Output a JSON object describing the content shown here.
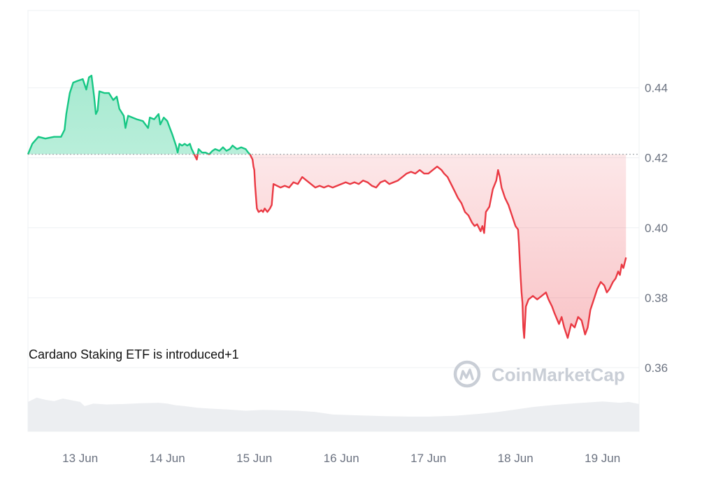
{
  "chart_data": {
    "type": "area",
    "title": "",
    "xlabel": "",
    "ylabel": "",
    "x_tick_labels": [
      "13 Jun",
      "14 Jun",
      "15 Jun",
      "16 Jun",
      "17 Jun",
      "18 Jun",
      "19 Jun"
    ],
    "y_ticks": [
      0.44,
      0.42,
      0.4,
      0.38,
      0.36
    ],
    "y_tick_labels": [
      "0.44",
      "0.42",
      "0.40",
      "0.38",
      "0.36"
    ],
    "ylim": [
      0.3418,
      0.4621
    ],
    "xlim": [
      12.4,
      19.42
    ],
    "baseline": 0.421,
    "grid": true,
    "colors": {
      "up_line": "#16c784",
      "up_fill": "#16c784",
      "down_line": "#ea3943",
      "down_fill": "#ea3943",
      "volume": "#eceef1",
      "grid": "#eef0f3",
      "baseline": "#9aa0a6"
    },
    "annotation": "Cardano Staking ETF is introduced+1",
    "watermark": "CoinMarketCap",
    "series": [
      {
        "values": [
          [
            12.4,
            0.421
          ],
          [
            12.45,
            0.424
          ],
          [
            12.52,
            0.426
          ],
          [
            12.6,
            0.4255
          ],
          [
            12.7,
            0.426
          ],
          [
            12.78,
            0.426
          ],
          [
            12.82,
            0.428
          ],
          [
            12.84,
            0.4325
          ],
          [
            12.88,
            0.4385
          ],
          [
            12.92,
            0.4415
          ],
          [
            12.97,
            0.442
          ],
          [
            13.03,
            0.4425
          ],
          [
            13.07,
            0.4395
          ],
          [
            13.1,
            0.443
          ],
          [
            13.13,
            0.4435
          ],
          [
            13.16,
            0.4375
          ],
          [
            13.18,
            0.4325
          ],
          [
            13.2,
            0.4335
          ],
          [
            13.22,
            0.439
          ],
          [
            13.28,
            0.4385
          ],
          [
            13.33,
            0.4385
          ],
          [
            13.38,
            0.4365
          ],
          [
            13.42,
            0.4375
          ],
          [
            13.45,
            0.434
          ],
          [
            13.5,
            0.432
          ],
          [
            13.52,
            0.4285
          ],
          [
            13.55,
            0.432
          ],
          [
            13.6,
            0.4315
          ],
          [
            13.65,
            0.431
          ],
          [
            13.72,
            0.4305
          ],
          [
            13.78,
            0.4285
          ],
          [
            13.8,
            0.4315
          ],
          [
            13.85,
            0.431
          ],
          [
            13.9,
            0.4325
          ],
          [
            13.92,
            0.4295
          ],
          [
            13.96,
            0.4315
          ],
          [
            14.0,
            0.4305
          ],
          [
            14.03,
            0.4285
          ],
          [
            14.06,
            0.4265
          ],
          [
            14.08,
            0.425
          ],
          [
            14.1,
            0.4235
          ],
          [
            14.12,
            0.4215
          ],
          [
            14.14,
            0.424
          ],
          [
            14.17,
            0.4235
          ],
          [
            14.2,
            0.424
          ],
          [
            14.23,
            0.4235
          ],
          [
            14.26,
            0.424
          ],
          [
            14.28,
            0.4225
          ],
          [
            14.3,
            0.4215
          ],
          [
            14.32,
            0.4205
          ],
          [
            14.34,
            0.4195
          ],
          [
            14.36,
            0.4225
          ],
          [
            14.4,
            0.4215
          ],
          [
            14.44,
            0.4215
          ],
          [
            14.48,
            0.421
          ],
          [
            14.52,
            0.422
          ],
          [
            14.55,
            0.4225
          ],
          [
            14.6,
            0.422
          ],
          [
            14.64,
            0.423
          ],
          [
            14.68,
            0.422
          ],
          [
            14.72,
            0.4225
          ],
          [
            14.75,
            0.4235
          ],
          [
            14.8,
            0.4225
          ],
          [
            14.85,
            0.423
          ],
          [
            14.9,
            0.4225
          ],
          [
            14.93,
            0.4215
          ],
          [
            14.95,
            0.421
          ],
          [
            14.98,
            0.4195
          ],
          [
            14.99,
            0.4175
          ],
          [
            15.0,
            0.4165
          ],
          [
            15.01,
            0.412
          ],
          [
            15.02,
            0.4085
          ],
          [
            15.03,
            0.4055
          ],
          [
            15.05,
            0.4045
          ],
          [
            15.08,
            0.405
          ],
          [
            15.1,
            0.4045
          ],
          [
            15.12,
            0.4055
          ],
          [
            15.15,
            0.4045
          ],
          [
            15.18,
            0.4055
          ],
          [
            15.2,
            0.4065
          ],
          [
            15.22,
            0.4125
          ],
          [
            15.26,
            0.412
          ],
          [
            15.3,
            0.4115
          ],
          [
            15.35,
            0.412
          ],
          [
            15.4,
            0.4115
          ],
          [
            15.45,
            0.413
          ],
          [
            15.5,
            0.4125
          ],
          [
            15.55,
            0.4145
          ],
          [
            15.6,
            0.4135
          ],
          [
            15.65,
            0.4125
          ],
          [
            15.7,
            0.4115
          ],
          [
            15.75,
            0.412
          ],
          [
            15.8,
            0.4115
          ],
          [
            15.85,
            0.412
          ],
          [
            15.9,
            0.4115
          ],
          [
            15.95,
            0.412
          ],
          [
            16.0,
            0.4125
          ],
          [
            16.05,
            0.413
          ],
          [
            16.1,
            0.4125
          ],
          [
            16.15,
            0.413
          ],
          [
            16.2,
            0.4125
          ],
          [
            16.25,
            0.4135
          ],
          [
            16.3,
            0.413
          ],
          [
            16.35,
            0.412
          ],
          [
            16.4,
            0.4115
          ],
          [
            16.45,
            0.413
          ],
          [
            16.5,
            0.4135
          ],
          [
            16.55,
            0.4125
          ],
          [
            16.6,
            0.413
          ],
          [
            16.65,
            0.4135
          ],
          [
            16.7,
            0.4145
          ],
          [
            16.75,
            0.4155
          ],
          [
            16.8,
            0.416
          ],
          [
            16.85,
            0.4155
          ],
          [
            16.9,
            0.4165
          ],
          [
            16.95,
            0.4155
          ],
          [
            17.0,
            0.4155
          ],
          [
            17.05,
            0.4165
          ],
          [
            17.1,
            0.4175
          ],
          [
            17.15,
            0.4165
          ],
          [
            17.18,
            0.4155
          ],
          [
            17.22,
            0.4145
          ],
          [
            17.26,
            0.4125
          ],
          [
            17.3,
            0.4105
          ],
          [
            17.34,
            0.4085
          ],
          [
            17.38,
            0.407
          ],
          [
            17.42,
            0.4045
          ],
          [
            17.46,
            0.4035
          ],
          [
            17.5,
            0.4015
          ],
          [
            17.53,
            0.4005
          ],
          [
            17.56,
            0.401
          ],
          [
            17.6,
            0.399
          ],
          [
            17.62,
            0.4005
          ],
          [
            17.64,
            0.3985
          ],
          [
            17.66,
            0.4045
          ],
          [
            17.7,
            0.406
          ],
          [
            17.74,
            0.411
          ],
          [
            17.78,
            0.4135
          ],
          [
            17.8,
            0.4165
          ],
          [
            17.82,
            0.4145
          ],
          [
            17.84,
            0.4115
          ],
          [
            17.88,
            0.4085
          ],
          [
            17.92,
            0.4065
          ],
          [
            17.96,
            0.4035
          ],
          [
            18.0,
            0.4005
          ],
          [
            18.03,
            0.3995
          ],
          [
            18.04,
            0.3955
          ],
          [
            18.05,
            0.3905
          ],
          [
            18.06,
            0.3855
          ],
          [
            18.07,
            0.3815
          ],
          [
            18.08,
            0.3785
          ],
          [
            18.09,
            0.3715
          ],
          [
            18.1,
            0.3685
          ],
          [
            18.12,
            0.3775
          ],
          [
            18.15,
            0.3795
          ],
          [
            18.2,
            0.3805
          ],
          [
            18.25,
            0.3795
          ],
          [
            18.3,
            0.3805
          ],
          [
            18.35,
            0.3815
          ],
          [
            18.38,
            0.3795
          ],
          [
            18.42,
            0.3775
          ],
          [
            18.45,
            0.3755
          ],
          [
            18.5,
            0.3725
          ],
          [
            18.53,
            0.3745
          ],
          [
            18.56,
            0.3715
          ],
          [
            18.6,
            0.3685
          ],
          [
            18.64,
            0.3725
          ],
          [
            18.68,
            0.3715
          ],
          [
            18.72,
            0.3745
          ],
          [
            18.76,
            0.3735
          ],
          [
            18.8,
            0.3695
          ],
          [
            18.83,
            0.3715
          ],
          [
            18.86,
            0.3765
          ],
          [
            18.9,
            0.3795
          ],
          [
            18.94,
            0.3825
          ],
          [
            18.98,
            0.3845
          ],
          [
            19.02,
            0.3835
          ],
          [
            19.05,
            0.3815
          ],
          [
            19.08,
            0.3825
          ],
          [
            19.12,
            0.3845
          ],
          [
            19.15,
            0.3855
          ],
          [
            19.18,
            0.3875
          ],
          [
            19.2,
            0.3865
          ],
          [
            19.22,
            0.3895
          ],
          [
            19.24,
            0.3885
          ],
          [
            19.27,
            0.3915
          ]
        ]
      }
    ],
    "volume": [
      [
        12.4,
        0.07
      ],
      [
        12.5,
        0.08
      ],
      [
        12.6,
        0.075
      ],
      [
        12.7,
        0.072
      ],
      [
        12.8,
        0.078
      ],
      [
        12.9,
        0.074
      ],
      [
        13.0,
        0.07
      ],
      [
        13.05,
        0.06
      ],
      [
        13.15,
        0.066
      ],
      [
        13.3,
        0.064
      ],
      [
        13.5,
        0.065
      ],
      [
        13.7,
        0.067
      ],
      [
        13.9,
        0.068
      ],
      [
        14.0,
        0.066
      ],
      [
        14.05,
        0.064
      ],
      [
        14.1,
        0.062
      ],
      [
        14.2,
        0.06
      ],
      [
        14.35,
        0.056
      ],
      [
        14.5,
        0.054
      ],
      [
        14.7,
        0.052
      ],
      [
        14.9,
        0.049
      ],
      [
        15.0,
        0.05
      ],
      [
        15.1,
        0.051
      ],
      [
        15.3,
        0.05
      ],
      [
        15.5,
        0.049
      ],
      [
        15.7,
        0.046
      ],
      [
        15.9,
        0.04
      ],
      [
        16.2,
        0.038
      ],
      [
        16.5,
        0.036
      ],
      [
        16.8,
        0.035
      ],
      [
        17.0,
        0.035
      ],
      [
        17.3,
        0.037
      ],
      [
        17.6,
        0.042
      ],
      [
        17.8,
        0.046
      ],
      [
        18.0,
        0.052
      ],
      [
        18.2,
        0.058
      ],
      [
        18.45,
        0.063
      ],
      [
        18.7,
        0.067
      ],
      [
        19.0,
        0.071
      ],
      [
        19.2,
        0.068
      ],
      [
        19.3,
        0.07
      ],
      [
        19.42,
        0.065
      ]
    ]
  }
}
